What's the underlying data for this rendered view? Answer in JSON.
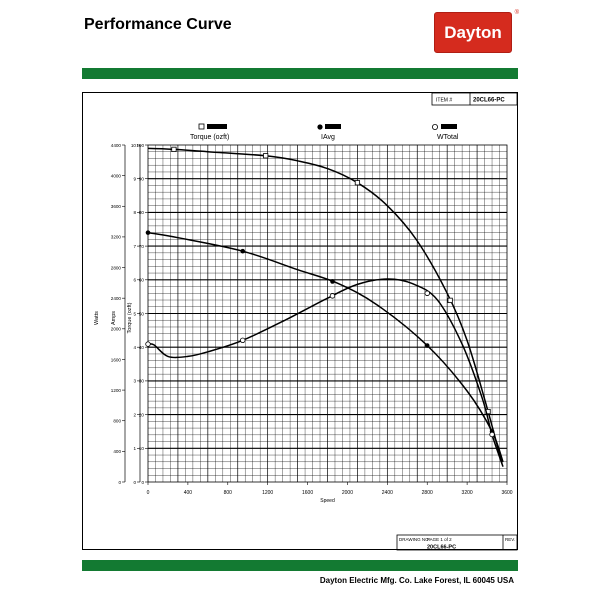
{
  "header": {
    "title": "Performance Curve",
    "brand": "Dayton",
    "accent_color": "#d52b1e",
    "band_color": "#137a32"
  },
  "item_box": {
    "label": "ITEM #",
    "value": "20CL66-PC"
  },
  "legend": {
    "torque": "Torque (ozft)",
    "amps": "IAvg",
    "watts": "WTotal"
  },
  "title_block": {
    "drawing_label": "DRAWING NO.",
    "page": "PAGE 1 of 2",
    "rev_label": "REV.",
    "drawing_no": "20CL66-PC"
  },
  "footer": "Dayton Electric Mfg. Co.  Lake Forest, IL  60045  USA",
  "chart_data": {
    "type": "line",
    "xlabel": "Speed",
    "xlim": [
      0,
      3600
    ],
    "x_ticks": [
      0,
      400,
      800,
      1200,
      1600,
      2000,
      2400,
      2800,
      3200,
      3600
    ],
    "axes": [
      {
        "label": "Watts",
        "lim": [
          0,
          4400
        ],
        "ticks": [
          0,
          400,
          800,
          1200,
          1600,
          2000,
          2400,
          2800,
          3200,
          3600,
          4000,
          4400
        ]
      },
      {
        "label": "Amps",
        "lim": [
          0,
          10
        ],
        "ticks": [
          0,
          1,
          2,
          3,
          4,
          5,
          6,
          7,
          8,
          9,
          10
        ]
      },
      {
        "label": "Torque (ozft)",
        "lim": [
          0,
          100
        ],
        "ticks": [
          0,
          10,
          20,
          30,
          40,
          50,
          60,
          70,
          80,
          90,
          100
        ]
      }
    ],
    "grid": true,
    "series": [
      {
        "name": "Torque (ozft)",
        "axis": "Torque (ozft)",
        "marker": "open-square",
        "x": [
          0,
          260,
          600,
          1180,
          1500,
          1800,
          2100,
          2400,
          2700,
          3000,
          3200,
          3400,
          3550
        ],
        "y": [
          99,
          98.7,
          98,
          96.8,
          95.3,
          93,
          88.8,
          82,
          71.5,
          56,
          42,
          22,
          5.5
        ],
        "markers_x": [
          260,
          1180,
          2100,
          3030,
          3410
        ]
      },
      {
        "name": "IAvg",
        "axis": "Amps",
        "marker": "filled-circle",
        "x": [
          0,
          300,
          950,
          1500,
          1900,
          2300,
          2800,
          3200,
          3450,
          3560
        ],
        "y": [
          7.4,
          7.25,
          6.85,
          6.3,
          5.9,
          5.25,
          4.05,
          2.7,
          1.5,
          0.6
        ],
        "markers_x": [
          0,
          950,
          1850,
          2800,
          3450
        ]
      },
      {
        "name": "WTotal",
        "axis": "Watts",
        "marker": "open-circle",
        "x": [
          0,
          60,
          200,
          400,
          600,
          950,
          1400,
          1800,
          2100,
          2400,
          2650,
          2900,
          3150,
          3350,
          3450,
          3560
        ],
        "y": [
          1800,
          1790,
          1640,
          1640,
          1700,
          1850,
          2130,
          2400,
          2580,
          2650,
          2590,
          2380,
          1800,
          1100,
          620,
          200
        ],
        "markers_x": [
          0,
          950,
          1850,
          2800,
          3450
        ]
      }
    ]
  }
}
